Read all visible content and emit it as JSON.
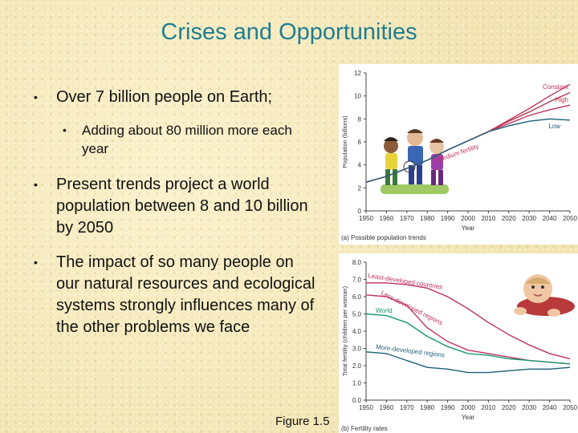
{
  "slide": {
    "title": "Crises and Opportunities",
    "bullets": [
      "Over 7 billion people on Earth;",
      "Adding about 80 million more each year",
      "Present trends project a world population between 8 and 10 billion by 2050",
      "The impact of so many people on our natural resources and ecological systems strongly influences many of the other problems we face"
    ],
    "figure_label": "Figure 1.5"
  },
  "colors": {
    "title": "#1f7e93",
    "constant": "#c0325c",
    "high": "#b5384f",
    "medium": "#c0325c",
    "low": "#1e5f78",
    "developing": "#c0325c",
    "world": "#1a9a6a"
  },
  "chart_data": [
    {
      "type": "line",
      "panel_label": "(a) Possible population trends",
      "xlabel": "Year",
      "ylabel": "Population (billions)",
      "x_ticks": [
        1950,
        1960,
        1970,
        1980,
        1990,
        2000,
        2010,
        2020,
        2030,
        2040,
        2050
      ],
      "y_ticks": [
        0,
        2,
        4,
        6,
        8,
        10,
        12
      ],
      "xlim": [
        1950,
        2050
      ],
      "ylim": [
        0,
        12
      ],
      "annotations": [
        "Medium fertility"
      ],
      "series": [
        {
          "name": "Constant",
          "x": [
            1950,
            1960,
            1970,
            1980,
            1990,
            2000,
            2010,
            2020,
            2030,
            2040,
            2050
          ],
          "y": [
            2.5,
            3.0,
            3.7,
            4.4,
            5.3,
            6.1,
            6.9,
            7.9,
            8.9,
            10.0,
            11.0
          ]
        },
        {
          "name": "High",
          "x": [
            1950,
            1960,
            1970,
            1980,
            1990,
            2000,
            2010,
            2020,
            2030,
            2040,
            2050
          ],
          "y": [
            2.5,
            3.0,
            3.7,
            4.4,
            5.3,
            6.1,
            6.9,
            7.8,
            8.6,
            9.5,
            10.3
          ]
        },
        {
          "name": "Medium fertility",
          "x": [
            1950,
            1960,
            1970,
            1980,
            1990,
            2000,
            2010,
            2020,
            2030,
            2040,
            2050
          ],
          "y": [
            2.5,
            3.0,
            3.7,
            4.4,
            5.3,
            6.1,
            6.9,
            7.6,
            8.3,
            8.8,
            9.2
          ]
        },
        {
          "name": "Low",
          "x": [
            1950,
            1960,
            1970,
            1980,
            1990,
            2000,
            2010,
            2020,
            2030,
            2040,
            2050
          ],
          "y": [
            2.5,
            3.0,
            3.7,
            4.4,
            5.3,
            6.1,
            6.9,
            7.4,
            7.8,
            8.0,
            7.9
          ]
        }
      ]
    },
    {
      "type": "line",
      "panel_label": "(b) Fertility rates",
      "xlabel": "Year",
      "ylabel": "Total fertility (children per woman)",
      "x_ticks": [
        1950,
        1960,
        1970,
        1980,
        1990,
        2000,
        2010,
        2020,
        2030,
        2040,
        2050
      ],
      "y_ticks": [
        "0.0",
        "1.0",
        "2.0",
        "3.0",
        "4.0",
        "5.0",
        "6.0",
        "7.0",
        "8.0"
      ],
      "xlim": [
        1950,
        2050
      ],
      "ylim": [
        0,
        8
      ],
      "series": [
        {
          "name": "Least-developed countries",
          "x": [
            1950,
            1960,
            1970,
            1980,
            1990,
            2000,
            2010,
            2020,
            2030,
            2040,
            2050
          ],
          "y": [
            6.8,
            6.8,
            6.7,
            6.5,
            6.0,
            5.3,
            4.5,
            3.8,
            3.2,
            2.7,
            2.4
          ]
        },
        {
          "name": "Less-developed regions",
          "x": [
            1950,
            1960,
            1970,
            1980,
            1990,
            2000,
            2010,
            2020,
            2030,
            2040,
            2050
          ],
          "y": [
            6.1,
            6.0,
            5.5,
            4.2,
            3.4,
            2.9,
            2.7,
            2.5,
            2.3,
            2.2,
            2.1
          ]
        },
        {
          "name": "World",
          "x": [
            1950,
            1960,
            1970,
            1980,
            1990,
            2000,
            2010,
            2020,
            2030,
            2040,
            2050
          ],
          "y": [
            5.0,
            4.9,
            4.5,
            3.7,
            3.1,
            2.7,
            2.6,
            2.4,
            2.3,
            2.2,
            2.1
          ]
        },
        {
          "name": "More-developed regions",
          "x": [
            1950,
            1960,
            1970,
            1980,
            1990,
            2000,
            2010,
            2020,
            2030,
            2040,
            2050
          ],
          "y": [
            2.8,
            2.7,
            2.3,
            1.9,
            1.8,
            1.6,
            1.6,
            1.7,
            1.8,
            1.8,
            1.9
          ]
        }
      ]
    }
  ]
}
